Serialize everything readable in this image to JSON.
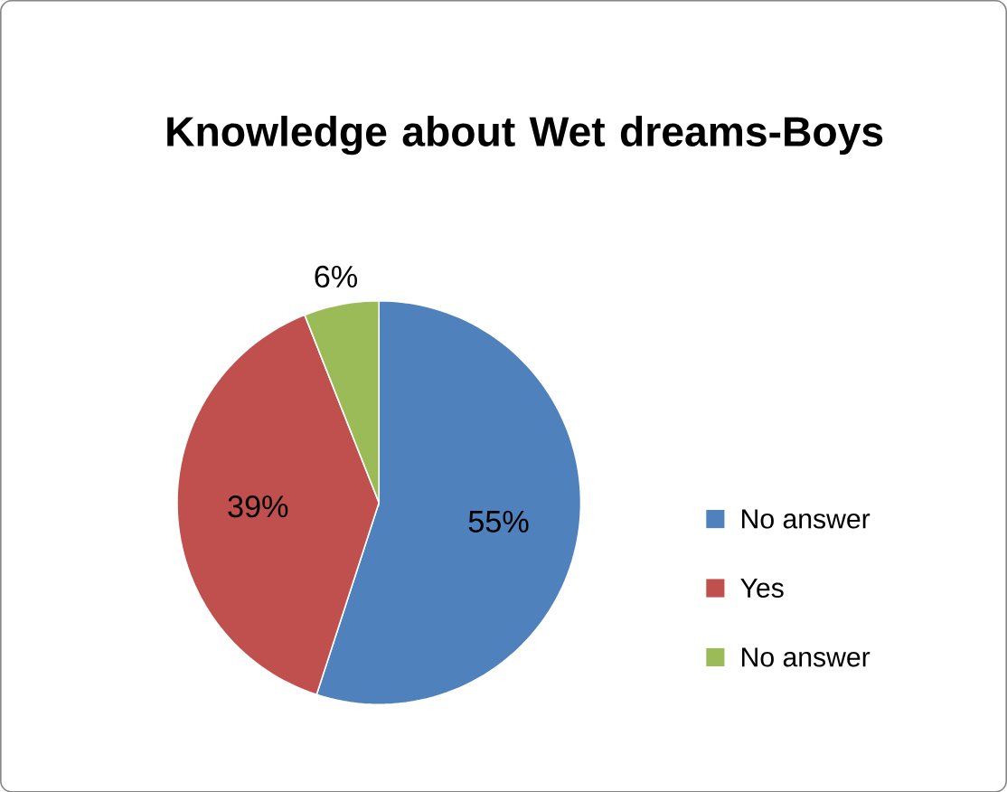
{
  "chart_data": {
    "type": "pie",
    "title": "Knowledge about Wet dreams-Boys",
    "categories": [
      "No answer",
      "Yes",
      "No answer"
    ],
    "values": [
      55,
      39,
      6
    ],
    "value_labels": [
      "55%",
      "39%",
      "6%"
    ],
    "colors": [
      "#4f81bd",
      "#c0504d",
      "#9bbb59"
    ],
    "legend": "right"
  }
}
